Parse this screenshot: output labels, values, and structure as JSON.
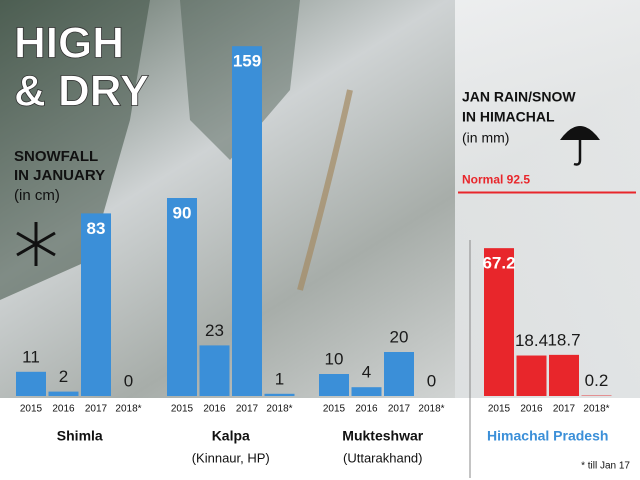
{
  "header": {
    "title_lines": [
      "HIGH",
      "& DRY"
    ],
    "snow_label": [
      "SNOWFALL",
      "IN JANUARY",
      "(in cm)"
    ],
    "rain_label": [
      "JAN RAIN/SNOW",
      "IN HIMACHAL",
      "(in mm)"
    ],
    "footnote": "* till Jan 17"
  },
  "chart_data": [
    {
      "type": "bar",
      "title": "Shimla",
      "categories": [
        "2015",
        "2016",
        "2017",
        "2018*"
      ],
      "values": [
        11,
        2,
        83,
        0
      ],
      "color": "#3b8fd8",
      "ylim": [
        0,
        160
      ]
    },
    {
      "type": "bar",
      "title": "Kalpa",
      "subtitle": "(Kinnaur, HP)",
      "categories": [
        "2015",
        "2016",
        "2017",
        "2018*"
      ],
      "values": [
        90,
        23,
        159,
        1
      ],
      "color": "#3b8fd8",
      "ylim": [
        0,
        160
      ]
    },
    {
      "type": "bar",
      "title": "Mukteshwar",
      "subtitle": "(Uttarakhand)",
      "categories": [
        "2015",
        "2016",
        "2017",
        "2018*"
      ],
      "values": [
        10,
        4,
        20,
        0
      ],
      "color": "#3b8fd8",
      "ylim": [
        0,
        160
      ]
    },
    {
      "type": "bar",
      "title": "Himachal Pradesh",
      "title_color": "#3b8fd8",
      "categories": [
        "2015",
        "2016",
        "2017",
        "2018*"
      ],
      "values": [
        67.2,
        18.4,
        18.7,
        0.2
      ],
      "color": "#e8262b",
      "ylim": [
        0,
        160
      ],
      "reference_line": {
        "value": 92.5,
        "label": "Normal 92.5",
        "color": "#e8262b"
      }
    }
  ]
}
